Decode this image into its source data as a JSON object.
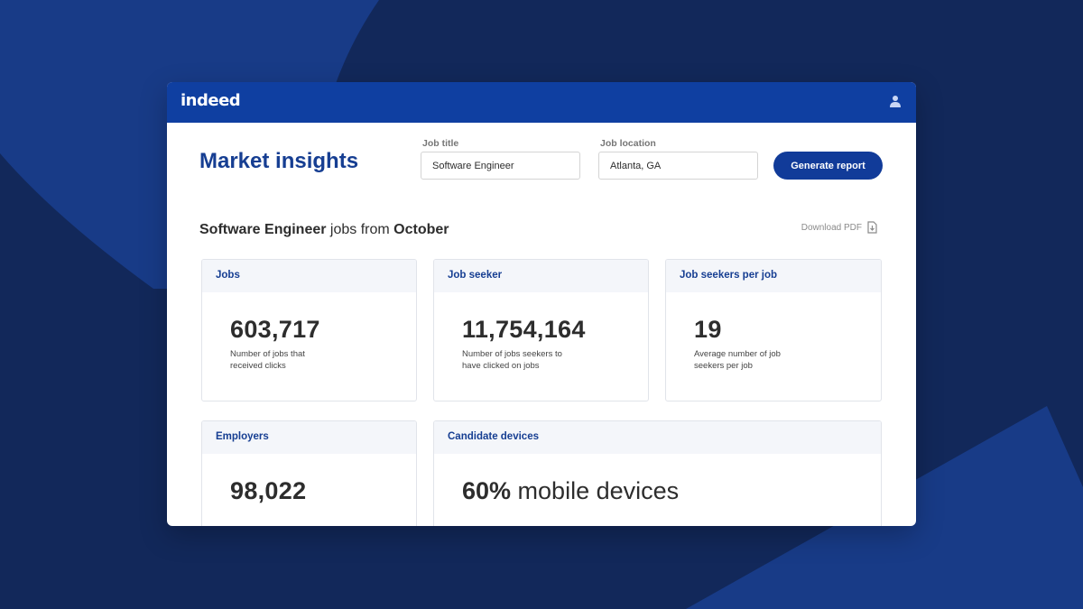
{
  "brand": {
    "logo_text": "indeed"
  },
  "header": {
    "user_icon": "user-icon"
  },
  "page": {
    "title": "Market insights"
  },
  "search": {
    "job_title_label": "Job title",
    "job_title_value": "Software Engineer",
    "job_location_label": "Job location",
    "job_location_value": "Atlanta, GA",
    "generate_label": "Generate report"
  },
  "report": {
    "heading_role": "Software Engineer",
    "heading_mid": " jobs from ",
    "heading_month": "October",
    "download_label": "Download PDF",
    "download_icon": "download-file-icon"
  },
  "cards": {
    "jobs": {
      "title": "Jobs",
      "value": "603,717",
      "desc": "Number of jobs that received clicks"
    },
    "seekers": {
      "title": "Job seeker",
      "value": "11,754,164",
      "desc": "Number of jobs seekers to have clicked on jobs"
    },
    "per_job": {
      "title": "Job seekers per job",
      "value": "19",
      "desc": "Average number of job seekers per job"
    },
    "employers": {
      "title": "Employers",
      "value": "98,022"
    },
    "devices": {
      "title": "Candidate devices",
      "value_bold": "60%",
      "value_rest": " mobile devices"
    }
  },
  "colors": {
    "background": "#12285a",
    "topbar": "#0f3fa1",
    "accent": "#163e92",
    "button": "#113b99"
  }
}
